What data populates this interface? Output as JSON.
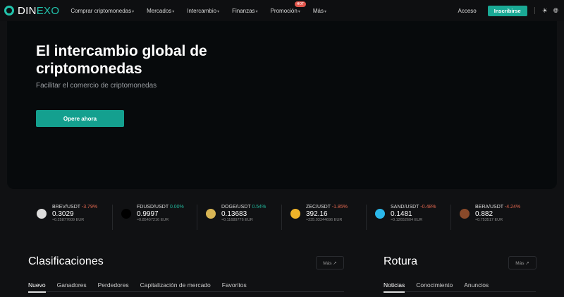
{
  "nav": {
    "logo_a": "DIN",
    "logo_b": "EXO",
    "items": [
      "Comprar criptomonedas",
      "Mercados",
      "Intercambio",
      "Finanzas",
      "Promoción",
      "Más"
    ],
    "hot_badge": "HOT",
    "login": "Acceso",
    "signup": "Inscribirse"
  },
  "hero": {
    "title": "El intercambio global de criptomonedas",
    "subtitle": "Facilitar el comercio de criptomonedas",
    "cta": "Opere ahora"
  },
  "ticker": [
    {
      "pair": "BREV/USDT",
      "change": "-3.79%",
      "price": "0.3029",
      "eur": "≈0.25877609 EUR",
      "dir": "neg",
      "color": "#dddddd",
      "icon": "brev-coin-icon"
    },
    {
      "pair": "FDUSD/USDT",
      "change": "0.00%",
      "price": "0.9997",
      "eur": "≈0.85407216 EUR",
      "dir": "pos",
      "color": "#000000",
      "icon": "fdusd-coin-icon"
    },
    {
      "pair": "DOGE/USDT",
      "change": "0.54%",
      "price": "0.13683",
      "eur": "≈0.11689776 EUR",
      "dir": "pos",
      "color": "#d8b554",
      "icon": "doge-coin-icon"
    },
    {
      "pair": "ZEC/USDT",
      "change": "-1.85%",
      "price": "392.16",
      "eur": "≈335.03344696 EUR",
      "dir": "neg",
      "color": "#f0b429",
      "icon": "zec-coin-icon"
    },
    {
      "pair": "SAND/USDT",
      "change": "-0.48%",
      "price": "0.1481",
      "eur": "≈0.12652604 EUR",
      "dir": "neg",
      "color": "#2bb8ea",
      "icon": "sand-coin-icon"
    },
    {
      "pair": "BERA/USDT",
      "change": "-4.24%",
      "price": "0.882",
      "eur": "≈0.753517 EUR",
      "dir": "neg",
      "color": "#8a4a2a",
      "icon": "bera-coin-icon"
    }
  ],
  "rankings": {
    "title": "Clasificaciones",
    "more": "Más ↗",
    "tabs": [
      "Nuevo",
      "Ganadores",
      "Perdedores",
      "Capitalización de mercado",
      "Favoritos"
    ]
  },
  "news": {
    "title": "Rotura",
    "more": "Más ↗",
    "tabs": [
      "Noticias",
      "Conocimiento",
      "Anuncios"
    ]
  },
  "colors": {
    "accent": "#1aa995",
    "negative": "#e2674f",
    "positive": "#22b79b"
  }
}
